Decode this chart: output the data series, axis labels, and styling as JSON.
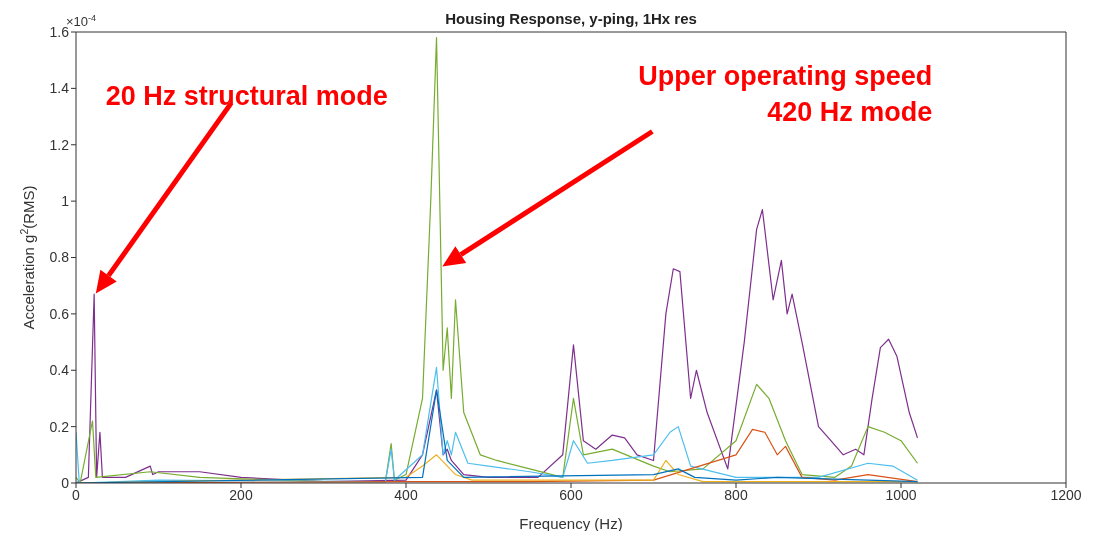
{
  "chart_data": {
    "type": "line",
    "title": "Housing Response, y-ping, 1Hx res",
    "xlabel": "Frequency (Hz)",
    "ylabel": "Acceleration g$^{2}$(RMS)",
    "annotations": [
      "×10$^{-4}$",
      "20 Hz structural mode",
      "Upper operating speed 420 Hz mode"
    ],
    "xlim": [
      0,
      1200
    ],
    "xticks": [
      0,
      200,
      400,
      600,
      800,
      1000,
      1200
    ],
    "ylim": [
      0,
      1.6
    ],
    "yticks": [
      0,
      0.2,
      0.4,
      0.6,
      0.8,
      1,
      1.2,
      1.4,
      1.6
    ],
    "grid": false,
    "marker": "none",
    "line_style": "solid",
    "series": [
      {
        "color": "#7e2f8e",
        "x": [
          0,
          15,
          22,
          25,
          29,
          32,
          60,
          90,
          93,
          100,
          150,
          200,
          300,
          400,
          420,
          437,
          445,
          450,
          455,
          470,
          500,
          560,
          590,
          603,
          615,
          630,
          650,
          665,
          680,
          700,
          715,
          724,
          732,
          745,
          752,
          765,
          790,
          810,
          825,
          832,
          845,
          855,
          862,
          868,
          880,
          900,
          915,
          930,
          945,
          955,
          965,
          975,
          985,
          995,
          1010,
          1020
        ],
        "values": [
          0,
          0.02,
          0.67,
          0.02,
          0.18,
          0.02,
          0.02,
          0.06,
          0.03,
          0.04,
          0.04,
          0.02,
          0.005,
          0.01,
          0.1,
          0.33,
          0.1,
          0.12,
          0.08,
          0.03,
          0.02,
          0.02,
          0.1,
          0.49,
          0.15,
          0.12,
          0.17,
          0.16,
          0.1,
          0.08,
          0.6,
          0.76,
          0.75,
          0.3,
          0.4,
          0.25,
          0.05,
          0.5,
          0.9,
          0.97,
          0.65,
          0.79,
          0.6,
          0.67,
          0.5,
          0.2,
          0.15,
          0.1,
          0.12,
          0.1,
          0.3,
          0.48,
          0.51,
          0.45,
          0.25,
          0.16
        ]
      },
      {
        "color": "#77ac30",
        "x": [
          0,
          5,
          20,
          24,
          90,
          150,
          300,
          375,
          382,
          386,
          400,
          420,
          430,
          437,
          445,
          450,
          455,
          460,
          470,
          490,
          510,
          550,
          590,
          603,
          615,
          650,
          700,
          720,
          760,
          800,
          825,
          840,
          860,
          880,
          920,
          940,
          960,
          980,
          1000,
          1020
        ],
        "values": [
          0.02,
          0,
          0.22,
          0.02,
          0.04,
          0.02,
          0.005,
          0.005,
          0.14,
          0.01,
          0.03,
          0.3,
          1,
          1.58,
          0.4,
          0.55,
          0.3,
          0.65,
          0.25,
          0.1,
          0.08,
          0.05,
          0.02,
          0.3,
          0.1,
          0.12,
          0.06,
          0.04,
          0.05,
          0.15,
          0.35,
          0.3,
          0.15,
          0.03,
          0.02,
          0.06,
          0.2,
          0.18,
          0.15,
          0.07
        ]
      },
      {
        "color": "#4dbeee",
        "x": [
          0,
          4,
          100,
          375,
          382,
          386,
          420,
          437,
          445,
          450,
          455,
          460,
          475,
          500,
          550,
          590,
          603,
          620,
          650,
          700,
          720,
          730,
          745,
          800,
          900,
          960,
          990,
          1020
        ],
        "values": [
          0.18,
          0,
          0.01,
          0.005,
          0.12,
          0.01,
          0.1,
          0.41,
          0.1,
          0.15,
          0.1,
          0.18,
          0.07,
          0.06,
          0.04,
          0.02,
          0.15,
          0.07,
          0.08,
          0.1,
          0.18,
          0.2,
          0.06,
          0.02,
          0.02,
          0.07,
          0.06,
          0.01
        ]
      },
      {
        "color": "#d95319",
        "x": [
          0,
          400,
          550,
          700,
          800,
          820,
          835,
          850,
          860,
          880,
          920,
          960,
          1020
        ],
        "values": [
          0,
          0.005,
          0.005,
          0.01,
          0.1,
          0.19,
          0.18,
          0.1,
          0.13,
          0.02,
          0.01,
          0.03,
          0.005
        ]
      },
      {
        "color": "#edb120",
        "x": [
          0,
          400,
          420,
          437,
          460,
          480,
          700,
          715,
          730,
          760,
          1020
        ],
        "values": [
          0,
          0.02,
          0.06,
          0.1,
          0.03,
          0.01,
          0.01,
          0.08,
          0.03,
          0.005,
          0.005
        ]
      },
      {
        "color": "#0072bd",
        "x": [
          0,
          420,
          437,
          450,
          470,
          700,
          730,
          750,
          800,
          850,
          1020
        ],
        "values": [
          0,
          0.02,
          0.33,
          0.08,
          0.02,
          0.03,
          0.05,
          0.02,
          0.01,
          0.02,
          0.005
        ]
      }
    ]
  }
}
